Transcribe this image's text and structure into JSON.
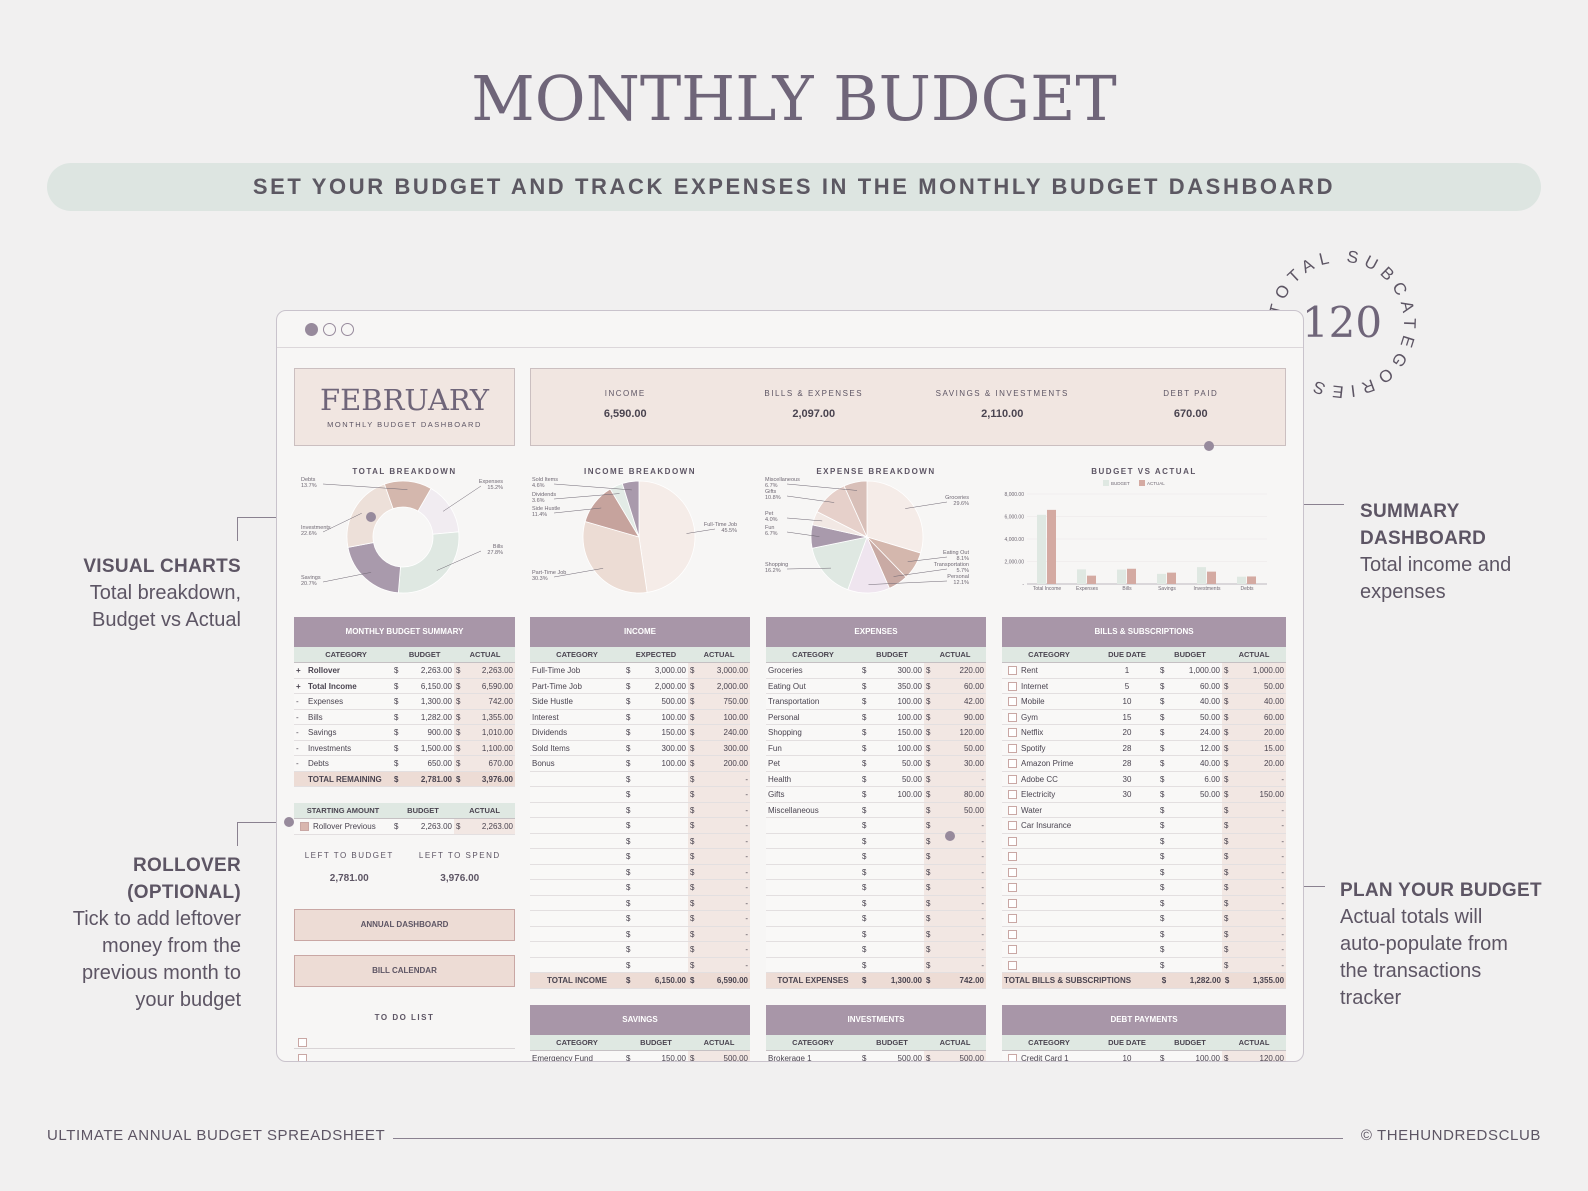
{
  "title": "MONTHLY BUDGET",
  "banner": "SET YOUR BUDGET AND TRACK EXPENSES IN THE MONTHLY BUDGET DASHBOARD",
  "badge": {
    "number": "120",
    "ring_text": "TOTAL SUBCATEGORIES"
  },
  "footer": {
    "left": "ULTIMATE ANNUAL BUDGET SPREADSHEET",
    "right": "© THEHUNDREDSCLUB"
  },
  "callouts": {
    "visual": {
      "heading": "VISUAL CHARTS",
      "lines": [
        "Total breakdown,",
        "Budget vs Actual"
      ]
    },
    "rollover": {
      "heading": [
        "ROLLOVER",
        "(OPTIONAL)"
      ],
      "lines": [
        "Tick to add leftover",
        "money from the",
        "previous month to",
        "your budget"
      ]
    },
    "summary": {
      "heading": [
        "SUMMARY",
        "DASHBOARD"
      ],
      "lines": [
        "Total income and",
        "expenses"
      ]
    },
    "plan": {
      "heading": "PLAN YOUR BUDGET",
      "lines": [
        "Actual totals will",
        "auto-populate from",
        "the transactions",
        "tracker"
      ]
    }
  },
  "dashboard": {
    "month": "FEBRUARY",
    "subtitle": "MONTHLY BUDGET DASHBOARD",
    "kpis": [
      {
        "label": "INCOME",
        "value": "6,590.00"
      },
      {
        "label": "BILLS & EXPENSES",
        "value": "2,097.00"
      },
      {
        "label": "SAVINGS & INVESTMENTS",
        "value": "2,110.00"
      },
      {
        "label": "DEBT PAID",
        "value": "670.00"
      }
    ],
    "chart_titles": [
      "TOTAL BREAKDOWN",
      "INCOME BREAKDOWN",
      "EXPENSE BREAKDOWN",
      "BUDGET VS ACTUAL"
    ],
    "left_to": {
      "budget_label": "LEFT TO BUDGET",
      "budget_value": "2,781.00",
      "spend_label": "LEFT TO SPEND",
      "spend_value": "3,976.00"
    },
    "buttons": {
      "annual": "ANNUAL DASHBOARD",
      "bill": "BILL CALENDAR"
    },
    "todo_title": "TO DO LIST",
    "summary_table": {
      "title": "MONTHLY BUDGET SUMMARY",
      "cols": [
        "CATEGORY",
        "BUDGET",
        "ACTUAL"
      ],
      "rows": [
        [
          "+",
          "Rollover",
          "2,263.00",
          "2,263.00"
        ],
        [
          "+",
          "Total Income",
          "6,150.00",
          "6,590.00"
        ],
        [
          "-",
          "Expenses",
          "1,300.00",
          "742.00"
        ],
        [
          "-",
          "Bills",
          "1,282.00",
          "1,355.00"
        ],
        [
          "-",
          "Savings",
          "900.00",
          "1,010.00"
        ],
        [
          "-",
          "Investments",
          "1,500.00",
          "1,100.00"
        ],
        [
          "-",
          "Debts",
          "650.00",
          "670.00"
        ]
      ],
      "total": [
        "TOTAL REMAINING",
        "2,781.00",
        "3,976.00"
      ]
    },
    "start_table": {
      "cols": [
        "STARTING AMOUNT",
        "BUDGET",
        "ACTUAL"
      ],
      "row": [
        "Rollover Previous",
        "2,263.00",
        "2,263.00"
      ]
    },
    "income_table": {
      "title": "INCOME",
      "cols": [
        "CATEGORY",
        "EXPECTED",
        "ACTUAL"
      ],
      "rows": [
        [
          "Full-Time Job",
          "3,000.00",
          "3,000.00"
        ],
        [
          "Part-Time Job",
          "2,000.00",
          "2,000.00"
        ],
        [
          "Side Hustle",
          "500.00",
          "750.00"
        ],
        [
          "Interest",
          "100.00",
          "100.00"
        ],
        [
          "Dividends",
          "150.00",
          "240.00"
        ],
        [
          "Sold Items",
          "300.00",
          "300.00"
        ],
        [
          "Bonus",
          "100.00",
          "200.00"
        ]
      ],
      "total": [
        "TOTAL INCOME",
        "6,150.00",
        "6,590.00"
      ]
    },
    "expense_table": {
      "title": "EXPENSES",
      "cols": [
        "CATEGORY",
        "BUDGET",
        "ACTUAL"
      ],
      "rows": [
        [
          "Groceries",
          "300.00",
          "220.00"
        ],
        [
          "Eating Out",
          "350.00",
          "60.00"
        ],
        [
          "Transportation",
          "100.00",
          "42.00"
        ],
        [
          "Personal",
          "100.00",
          "90.00"
        ],
        [
          "Shopping",
          "150.00",
          "120.00"
        ],
        [
          "Fun",
          "100.00",
          "50.00"
        ],
        [
          "Pet",
          "50.00",
          "30.00"
        ],
        [
          "Health",
          "50.00",
          "-"
        ],
        [
          "Gifts",
          "100.00",
          "80.00"
        ],
        [
          "Miscellaneous",
          "",
          "50.00"
        ]
      ],
      "total": [
        "TOTAL EXPENSES",
        "1,300.00",
        "742.00"
      ]
    },
    "bills_table": {
      "title": "BILLS & SUBSCRIPTIONS",
      "cols": [
        "CATEGORY",
        "DUE DATE",
        "BUDGET",
        "ACTUAL"
      ],
      "rows": [
        [
          "Rent",
          "1",
          "1,000.00",
          "1,000.00"
        ],
        [
          "Internet",
          "5",
          "60.00",
          "50.00"
        ],
        [
          "Mobile",
          "10",
          "40.00",
          "40.00"
        ],
        [
          "Gym",
          "15",
          "50.00",
          "60.00"
        ],
        [
          "Netflix",
          "20",
          "24.00",
          "20.00"
        ],
        [
          "Spotify",
          "28",
          "12.00",
          "15.00"
        ],
        [
          "Amazon Prime",
          "28",
          "40.00",
          "20.00"
        ],
        [
          "Adobe CC",
          "30",
          "6.00",
          "-"
        ],
        [
          "Electricity",
          "30",
          "50.00",
          "150.00"
        ],
        [
          "Water",
          "",
          "",
          "-"
        ],
        [
          "Car Insurance",
          "",
          "",
          "-"
        ]
      ],
      "total": [
        "TOTAL BILLS & SUBSCRIPTIONS",
        "1,282.00",
        "1,355.00"
      ]
    },
    "savings_table": {
      "title": "SAVINGS",
      "cols": [
        "CATEGORY",
        "BUDGET",
        "ACTUAL"
      ],
      "row": [
        "Emergency Fund",
        "150.00",
        "500.00"
      ]
    },
    "invest_table": {
      "title": "INVESTMENTS",
      "cols": [
        "CATEGORY",
        "BUDGET",
        "ACTUAL"
      ],
      "row": [
        "Brokerage 1",
        "500.00",
        "500.00"
      ]
    },
    "debt_table": {
      "title": "DEBT PAYMENTS",
      "cols": [
        "CATEGORY",
        "DUE DATE",
        "BUDGET",
        "ACTUAL"
      ],
      "row": [
        "Credit Card 1",
        "10",
        "100.00",
        "120.00"
      ]
    }
  },
  "chart_data": [
    {
      "type": "pie",
      "title": "TOTAL BREAKDOWN",
      "labels": [
        "Expenses",
        "Bills",
        "Savings",
        "Investments",
        "Debts"
      ],
      "values": [
        15.2,
        27.8,
        20.7,
        22.6,
        13.7
      ],
      "pct": [
        "15.2%",
        "27.8%",
        "20.7%",
        "22.6%",
        "13.7%"
      ],
      "colors": [
        "#f1ecf1",
        "#dfe8e2",
        "#a99aac",
        "#ede0d9",
        "#d4b7ad"
      ]
    },
    {
      "type": "pie",
      "title": "INCOME BREAKDOWN",
      "labels": [
        "Full-Time Job",
        "Part-Time Job",
        "Side Hustle",
        "Dividends",
        "Sold Items"
      ],
      "values": [
        45.5,
        30.3,
        11.4,
        3.6,
        4.6
      ],
      "pct": [
        "45.5%",
        "30.3%",
        "11.4%",
        "3.6%",
        "4.6%"
      ],
      "colors": [
        "#f5ece8",
        "#ecdcd4",
        "#c6a39d",
        "#e3ebe6",
        "#a99aac"
      ]
    },
    {
      "type": "pie",
      "title": "EXPENSE BREAKDOWN",
      "labels": [
        "Groceries",
        "Eating Out",
        "Transportation",
        "Personal",
        "Shopping",
        "Fun",
        "Pet",
        "Gifts",
        "Miscellaneous"
      ],
      "values": [
        29.6,
        8.1,
        5.7,
        12.1,
        16.2,
        6.7,
        4.0,
        10.8,
        6.7
      ],
      "pct": [
        "29.6%",
        "8.1%",
        "5.7%",
        "12.1%",
        "16.2%",
        "6.7%",
        "4.0%",
        "10.8%",
        "6.7%"
      ],
      "colors": [
        "#f5ece8",
        "#d4b7ad",
        "#c9aaa4",
        "#efe5ef",
        "#dfe8e2",
        "#a99aac",
        "#f2e8e4",
        "#e6d0ca",
        "#d8bfb8"
      ]
    },
    {
      "type": "bar",
      "title": "BUDGET VS ACTUAL",
      "categories": [
        "Total Income",
        "Expenses",
        "Bills",
        "Savings",
        "Investments",
        "Debts"
      ],
      "series": [
        {
          "name": "BUDGET",
          "values": [
            6150,
            1300,
            1282,
            900,
            1500,
            650
          ],
          "color": "#dfe8e2"
        },
        {
          "name": "ACTUAL",
          "values": [
            6590,
            742,
            1355,
            1010,
            1100,
            670
          ],
          "color": "#d4aaa2"
        }
      ],
      "yticks": [
        "8,000.00",
        "6,000.00",
        "4,000.00",
        "2,000.00",
        "-"
      ],
      "ylim": [
        0,
        8000
      ]
    }
  ]
}
